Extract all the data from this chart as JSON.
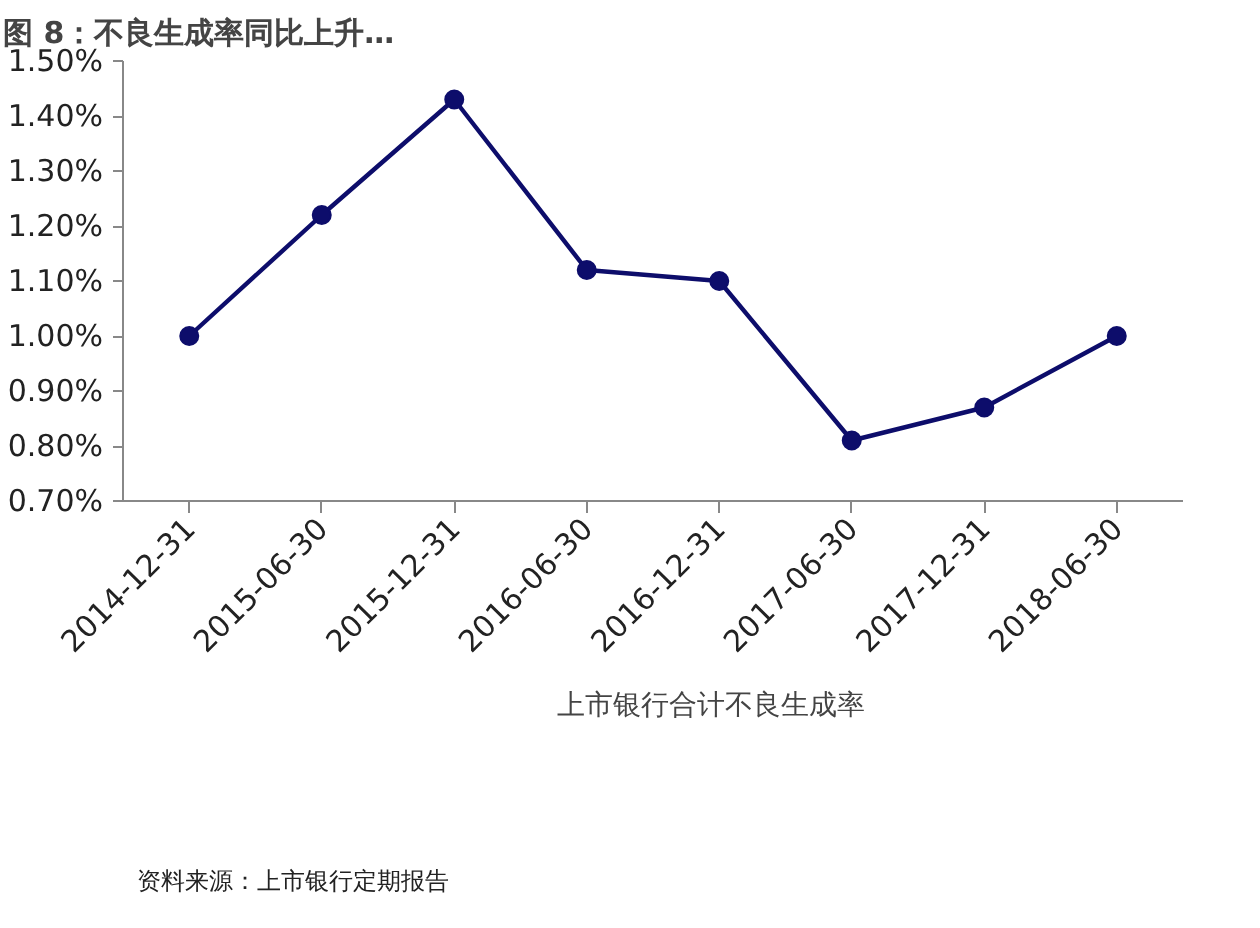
{
  "chart_data": {
    "type": "line",
    "title": "图 8：不良生成率同比上升…",
    "categories": [
      "2014-12-31",
      "2015-06-30",
      "2015-12-31",
      "2016-06-30",
      "2016-12-31",
      "2017-06-30",
      "2017-12-31",
      "2018-06-30"
    ],
    "series": [
      {
        "name": "上市银行合计不良生成率",
        "color": "#0d0d6b",
        "values": [
          1.0,
          1.22,
          1.43,
          1.12,
          1.1,
          0.81,
          0.87,
          1.0
        ]
      }
    ],
    "ylim": [
      0.7,
      1.5
    ],
    "yticks": [
      {
        "value": 0.7,
        "label": "0.70%"
      },
      {
        "value": 0.8,
        "label": "0.80%"
      },
      {
        "value": 0.9,
        "label": "0.90%"
      },
      {
        "value": 1.0,
        "label": "1.00%"
      },
      {
        "value": 1.1,
        "label": "1.10%"
      },
      {
        "value": 1.2,
        "label": "1.20%"
      },
      {
        "value": 1.3,
        "label": "1.30%"
      },
      {
        "value": 1.4,
        "label": "1.40%"
      },
      {
        "value": 1.5,
        "label": "1.50%"
      }
    ],
    "grid": false,
    "legend": "bottom",
    "marker": "circle",
    "line_style": "solid",
    "annotations": [
      "资料来源：上市银行定期报告"
    ]
  }
}
